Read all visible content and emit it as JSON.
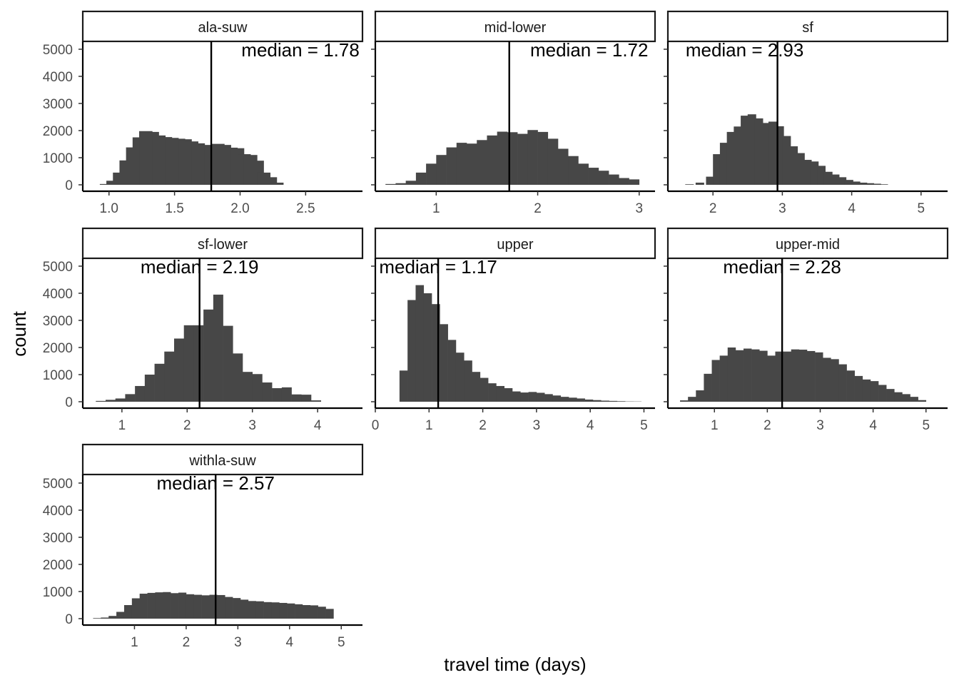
{
  "chart_data": {
    "type": "bar",
    "layout": "faceted-histograms",
    "xlabel": "travel time (days)",
    "ylabel": "count",
    "grid": false,
    "bar_color": "#474747",
    "y_ticks": [
      0,
      1000,
      2000,
      3000,
      4000,
      5000
    ],
    "ylim": [
      0,
      5400
    ],
    "facets": [
      {
        "name": "ala-suw",
        "median": 1.78,
        "median_label": "median = 1.78",
        "xlim": [
          0.8,
          2.89
        ],
        "x_ticks": [
          "1.0",
          "1.5",
          "2.0",
          "2.5"
        ],
        "x_tick_values": [
          1.0,
          1.5,
          2.0,
          2.5
        ],
        "bins": [
          [
            0.93,
            30
          ],
          [
            0.98,
            150
          ],
          [
            1.03,
            450
          ],
          [
            1.08,
            900
          ],
          [
            1.13,
            1380
          ],
          [
            1.18,
            1750
          ],
          [
            1.23,
            1980
          ],
          [
            1.28,
            1950
          ],
          [
            1.33,
            1820
          ],
          [
            1.38,
            1760
          ],
          [
            1.43,
            1730
          ],
          [
            1.48,
            1700
          ],
          [
            1.53,
            1680
          ],
          [
            1.58,
            1600
          ],
          [
            1.63,
            1530
          ],
          [
            1.68,
            1470
          ],
          [
            1.73,
            1460
          ],
          [
            1.78,
            1510
          ],
          [
            1.83,
            1470
          ],
          [
            1.88,
            1370
          ],
          [
            1.93,
            1350
          ],
          [
            1.98,
            1130
          ],
          [
            2.03,
            1100
          ],
          [
            2.08,
            890
          ],
          [
            2.13,
            450
          ],
          [
            2.18,
            280
          ],
          [
            2.23,
            80
          ]
        ],
        "bin_width": 0.1
      },
      {
        "name": "mid-lower",
        "median": 1.72,
        "median_label": "median = 1.72",
        "xlim": [
          0.4,
          3.1
        ],
        "x_ticks": [
          "1",
          "2",
          "3"
        ],
        "x_tick_values": [
          1,
          2,
          3
        ],
        "bins": [
          [
            0.5,
            30
          ],
          [
            0.6,
            60
          ],
          [
            0.7,
            150
          ],
          [
            0.8,
            450
          ],
          [
            0.9,
            780
          ],
          [
            1.0,
            1100
          ],
          [
            1.1,
            1380
          ],
          [
            1.2,
            1550
          ],
          [
            1.3,
            1520
          ],
          [
            1.4,
            1650
          ],
          [
            1.5,
            1820
          ],
          [
            1.6,
            1960
          ],
          [
            1.7,
            1940
          ],
          [
            1.8,
            1880
          ],
          [
            1.9,
            2020
          ],
          [
            2.0,
            1950
          ],
          [
            2.1,
            1700
          ],
          [
            2.2,
            1330
          ],
          [
            2.3,
            1060
          ],
          [
            2.4,
            780
          ],
          [
            2.5,
            630
          ],
          [
            2.6,
            520
          ],
          [
            2.7,
            380
          ],
          [
            2.8,
            250
          ],
          [
            2.9,
            200
          ]
        ],
        "bin_width": 0.1
      },
      {
        "name": "sf",
        "median": 2.93,
        "median_label": "median = 2.93",
        "xlim": [
          1.35,
          5.3
        ],
        "x_ticks": [
          "2",
          "3",
          "4",
          "5"
        ],
        "x_tick_values": [
          2,
          3,
          4,
          5
        ],
        "bins": [
          [
            1.6,
            20
          ],
          [
            1.75,
            80
          ],
          [
            1.9,
            300
          ],
          [
            2.0,
            1130
          ],
          [
            2.1,
            1550
          ],
          [
            2.2,
            1950
          ],
          [
            2.3,
            2150
          ],
          [
            2.4,
            2550
          ],
          [
            2.5,
            2600
          ],
          [
            2.6,
            2450
          ],
          [
            2.7,
            2280
          ],
          [
            2.8,
            2330
          ],
          [
            2.9,
            2160
          ],
          [
            3.0,
            1800
          ],
          [
            3.1,
            1420
          ],
          [
            3.2,
            1170
          ],
          [
            3.3,
            920
          ],
          [
            3.4,
            860
          ],
          [
            3.5,
            700
          ],
          [
            3.6,
            480
          ],
          [
            3.7,
            380
          ],
          [
            3.8,
            280
          ],
          [
            3.9,
            180
          ],
          [
            4.0,
            120
          ],
          [
            4.1,
            80
          ],
          [
            4.2,
            60
          ],
          [
            4.3,
            40
          ],
          [
            4.4,
            20
          ]
        ],
        "bin_width": 0.12
      },
      {
        "name": "sf-lower",
        "median": 2.19,
        "median_label": "median = 2.19",
        "xlim": [
          0.4,
          4.6
        ],
        "x_ticks": [
          "1",
          "2",
          "3",
          "4"
        ],
        "x_tick_values": [
          1,
          2,
          3,
          4
        ],
        "bins": [
          [
            0.6,
            30
          ],
          [
            0.75,
            70
          ],
          [
            0.9,
            120
          ],
          [
            1.05,
            280
          ],
          [
            1.2,
            580
          ],
          [
            1.35,
            1000
          ],
          [
            1.5,
            1400
          ],
          [
            1.65,
            1850
          ],
          [
            1.8,
            2330
          ],
          [
            1.95,
            2820
          ],
          [
            2.1,
            2820
          ],
          [
            2.25,
            3400
          ],
          [
            2.4,
            3950
          ],
          [
            2.55,
            2800
          ],
          [
            2.7,
            1780
          ],
          [
            2.85,
            1100
          ],
          [
            3.0,
            1020
          ],
          [
            3.15,
            710
          ],
          [
            3.3,
            500
          ],
          [
            3.45,
            530
          ],
          [
            3.6,
            270
          ],
          [
            3.75,
            260
          ],
          [
            3.9,
            50
          ]
        ],
        "bin_width": 0.15
      },
      {
        "name": "upper",
        "median": 1.17,
        "median_label": "median = 1.17",
        "xlim": [
          0.0,
          5.1
        ],
        "x_ticks": [
          "0",
          "1",
          "2",
          "3",
          "4",
          "5"
        ],
        "x_tick_values": [
          0,
          1,
          2,
          3,
          4,
          5
        ],
        "bins": [
          [
            0.45,
            1150
          ],
          [
            0.6,
            3750
          ],
          [
            0.75,
            4300
          ],
          [
            0.9,
            4000
          ],
          [
            1.05,
            3600
          ],
          [
            1.2,
            2860
          ],
          [
            1.35,
            2280
          ],
          [
            1.5,
            1810
          ],
          [
            1.65,
            1520
          ],
          [
            1.8,
            1100
          ],
          [
            1.95,
            880
          ],
          [
            2.1,
            680
          ],
          [
            2.25,
            580
          ],
          [
            2.4,
            500
          ],
          [
            2.55,
            380
          ],
          [
            2.7,
            340
          ],
          [
            2.85,
            360
          ],
          [
            3.0,
            330
          ],
          [
            3.15,
            280
          ],
          [
            3.3,
            230
          ],
          [
            3.45,
            180
          ],
          [
            3.6,
            150
          ],
          [
            3.75,
            120
          ],
          [
            3.9,
            80
          ],
          [
            4.05,
            60
          ],
          [
            4.2,
            40
          ],
          [
            4.35,
            30
          ],
          [
            4.5,
            20
          ],
          [
            4.65,
            10
          ],
          [
            4.8,
            8
          ]
        ],
        "bin_width": 0.15
      },
      {
        "name": "upper-mid",
        "median": 2.28,
        "median_label": "median = 2.28",
        "xlim": [
          0.12,
          5.3
        ],
        "x_ticks": [
          "1",
          "2",
          "3",
          "4",
          "5"
        ],
        "x_tick_values": [
          1,
          2,
          3,
          4,
          5
        ],
        "bins": [
          [
            0.35,
            50
          ],
          [
            0.5,
            180
          ],
          [
            0.65,
            420
          ],
          [
            0.8,
            1030
          ],
          [
            0.95,
            1540
          ],
          [
            1.1,
            1700
          ],
          [
            1.25,
            2000
          ],
          [
            1.4,
            1900
          ],
          [
            1.55,
            1960
          ],
          [
            1.7,
            1930
          ],
          [
            1.85,
            1880
          ],
          [
            2.0,
            1700
          ],
          [
            2.15,
            1850
          ],
          [
            2.3,
            1850
          ],
          [
            2.45,
            1930
          ],
          [
            2.6,
            1920
          ],
          [
            2.75,
            1870
          ],
          [
            2.9,
            1820
          ],
          [
            3.05,
            1620
          ],
          [
            3.2,
            1570
          ],
          [
            3.35,
            1380
          ],
          [
            3.5,
            1150
          ],
          [
            3.65,
            950
          ],
          [
            3.8,
            820
          ],
          [
            3.95,
            760
          ],
          [
            4.1,
            620
          ],
          [
            4.25,
            470
          ],
          [
            4.4,
            350
          ],
          [
            4.55,
            280
          ],
          [
            4.7,
            180
          ],
          [
            4.85,
            60
          ]
        ],
        "bin_width": 0.15
      },
      {
        "name": "withla-suw",
        "median": 2.57,
        "median_label": "median = 2.57",
        "xlim": [
          0.0,
          5.3
        ],
        "x_ticks": [
          "1",
          "2",
          "3",
          "4",
          "5"
        ],
        "x_tick_values": [
          1,
          2,
          3,
          4,
          5
        ],
        "bins": [
          [
            0.2,
            20
          ],
          [
            0.35,
            40
          ],
          [
            0.5,
            100
          ],
          [
            0.65,
            250
          ],
          [
            0.8,
            500
          ],
          [
            0.95,
            750
          ],
          [
            1.1,
            920
          ],
          [
            1.25,
            950
          ],
          [
            1.4,
            970
          ],
          [
            1.55,
            980
          ],
          [
            1.7,
            940
          ],
          [
            1.85,
            960
          ],
          [
            2.0,
            900
          ],
          [
            2.15,
            880
          ],
          [
            2.3,
            860
          ],
          [
            2.45,
            880
          ],
          [
            2.6,
            870
          ],
          [
            2.75,
            800
          ],
          [
            2.9,
            760
          ],
          [
            3.05,
            700
          ],
          [
            3.2,
            650
          ],
          [
            3.35,
            640
          ],
          [
            3.5,
            610
          ],
          [
            3.65,
            600
          ],
          [
            3.8,
            580
          ],
          [
            3.95,
            560
          ],
          [
            4.1,
            530
          ],
          [
            4.25,
            500
          ],
          [
            4.4,
            490
          ],
          [
            4.55,
            440
          ],
          [
            4.7,
            360
          ]
        ],
        "bin_width": 0.15
      }
    ]
  }
}
